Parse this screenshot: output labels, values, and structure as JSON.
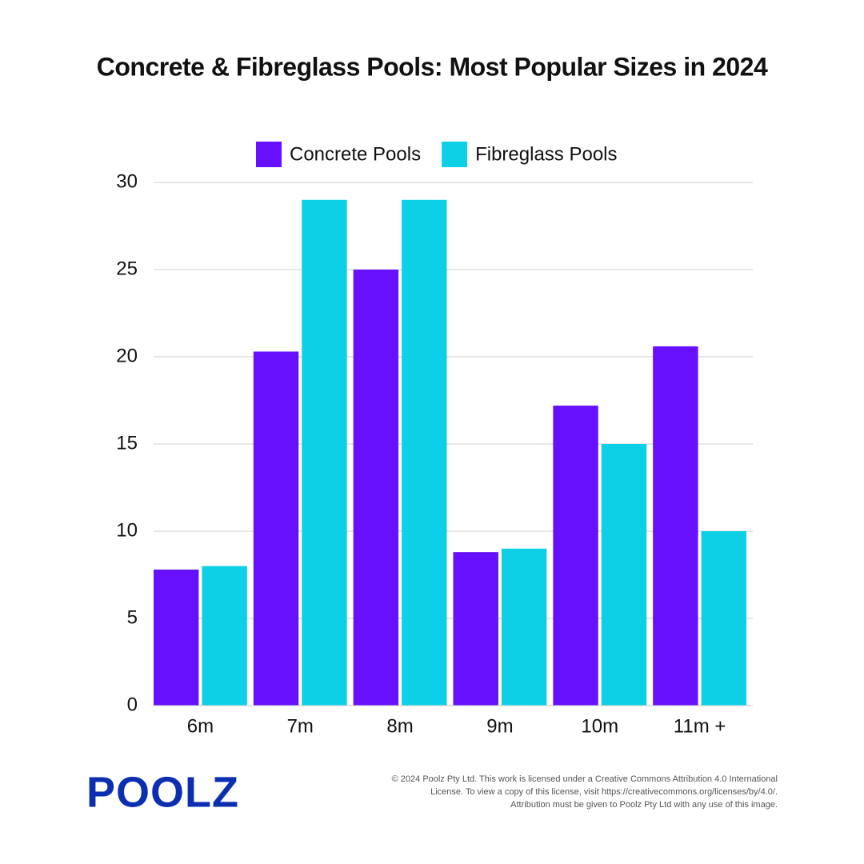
{
  "chart_data": {
    "type": "bar",
    "title": "Concrete & Fibreglass Pools: Most Popular Sizes in 2024",
    "categories": [
      "6m",
      "7m",
      "8m",
      "9m",
      "10m",
      "11m +"
    ],
    "series": [
      {
        "name": "Concrete Pools",
        "color": "#6610ff",
        "values": [
          7.8,
          20.3,
          25,
          8.8,
          17.2,
          20.6
        ]
      },
      {
        "name": "Fibreglass Pools",
        "color": "#0dd0e6",
        "values": [
          8,
          29,
          29,
          9,
          15,
          10
        ]
      }
    ],
    "ylim": [
      0,
      30
    ],
    "yticks": [
      0,
      5,
      10,
      15,
      20,
      25,
      30
    ],
    "grid": true,
    "legend": "top"
  },
  "footer": {
    "logo": "POOLZ",
    "license": [
      "© 2024 Poolz Pty Ltd. This work is licensed under a Creative Commons Attribution 4.0 International",
      "License. To view a copy of this license, visit https://creativecommons.org/licenses/by/4.0/.",
      "Attribution must be given to Poolz Pty Ltd with any use of this image."
    ]
  }
}
